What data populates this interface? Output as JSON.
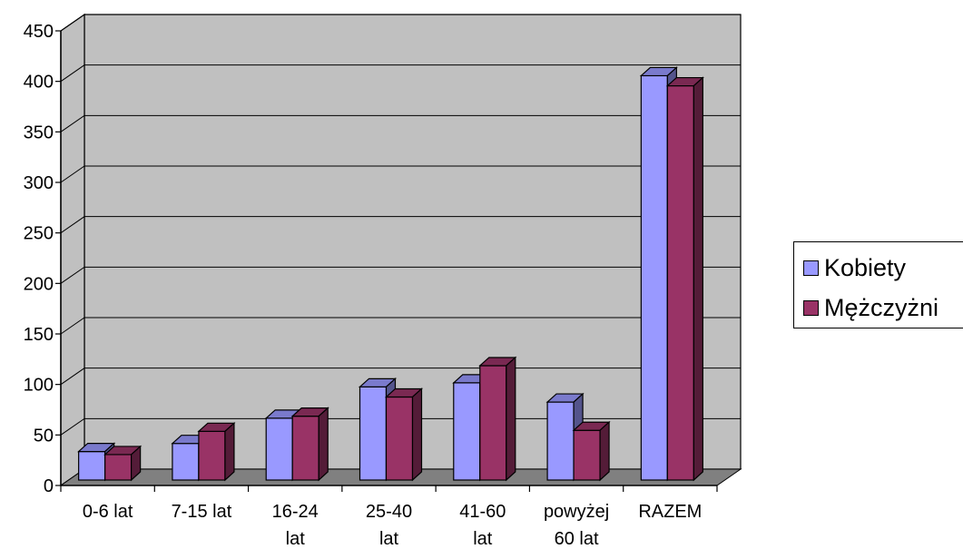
{
  "chart_data": {
    "type": "bar",
    "title": "",
    "xlabel": "",
    "ylabel": "",
    "ylim": [
      0,
      450
    ],
    "yticks": [
      0,
      50,
      100,
      150,
      200,
      250,
      300,
      350,
      400,
      450
    ],
    "categories": [
      "0-6 lat",
      "7-15 lat",
      "16-24\nlat",
      "25-40\nlat",
      "41-60\nlat",
      "powyżej\n60 lat",
      "RAZEM"
    ],
    "series": [
      {
        "name": "Kobiety",
        "color": "#9999ff",
        "values": [
          30,
          38,
          63,
          94,
          98,
          79,
          402
        ]
      },
      {
        "name": "Mężczyżni",
        "color": "#993366",
        "values": [
          27,
          50,
          65,
          84,
          115,
          51,
          392
        ]
      }
    ],
    "grid": true,
    "legend_position": "right",
    "style": "3d-clustered"
  }
}
